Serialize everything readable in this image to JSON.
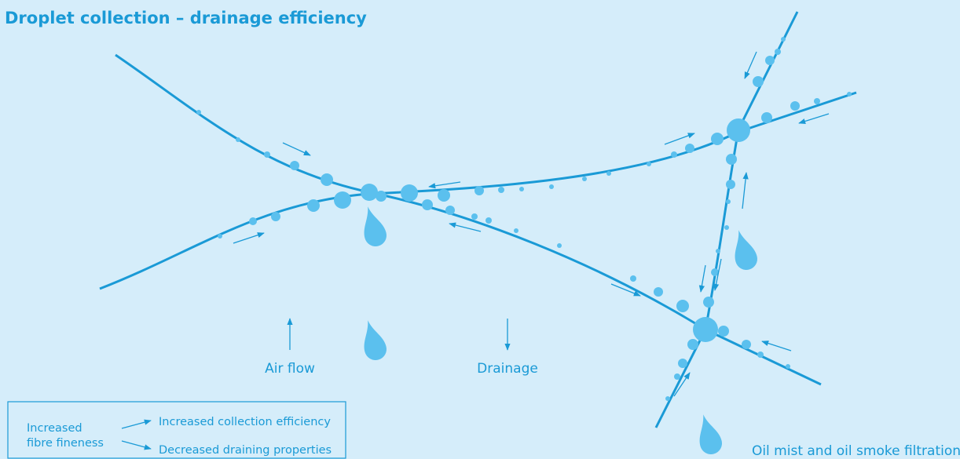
{
  "title": "Droplet collection – drainage efficiency",
  "labels": {
    "air_flow": "Air flow",
    "drainage": "Drainage"
  },
  "legend": {
    "fineness": [
      "Increased",
      "fibre fineness"
    ],
    "collection": "Increased collection efficiency",
    "draining": "Decreased draining properties"
  },
  "caption": "Oil mist and oil smoke filtration"
}
